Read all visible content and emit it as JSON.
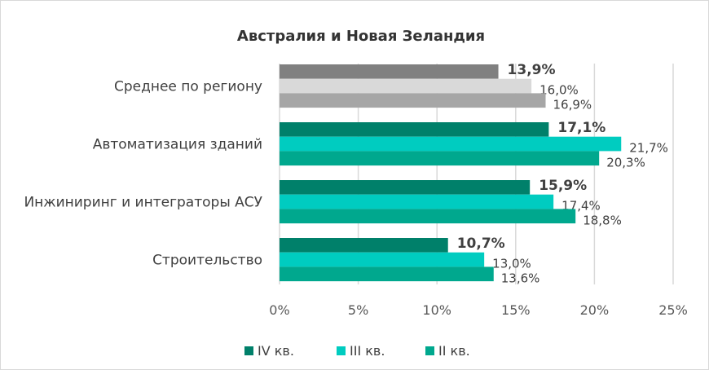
{
  "chart_data": {
    "type": "bar",
    "orientation": "horizontal",
    "title": "Австралия и Новая Зеландия",
    "categories": [
      "Среднее по региону",
      "Автоматизация зданий",
      "Инжиниринг и интеграторы АСУ",
      "Строительство"
    ],
    "series": [
      {
        "name": "IV кв.",
        "values": [
          13.9,
          17.1,
          15.9,
          10.7
        ],
        "labels": [
          "13,9%",
          "17,1%",
          "15,9%",
          "10,7%"
        ],
        "color": "#00806a",
        "avg_color": "#808080"
      },
      {
        "name": "III кв.",
        "values": [
          16.0,
          21.7,
          17.4,
          13.0
        ],
        "labels": [
          "16,0%",
          "21,7%",
          "17,4%",
          "13,0%"
        ],
        "color": "#00ccc0",
        "avg_color": "#d9d9d9"
      },
      {
        "name": "II кв.",
        "values": [
          16.9,
          20.3,
          18.8,
          13.6
        ],
        "labels": [
          "16,9%",
          "20,3%",
          "18,8%",
          "13,6%"
        ],
        "color": "#00a88e",
        "avg_color": "#a6a6a6"
      }
    ],
    "xlim": [
      0,
      25
    ],
    "xticks": [
      0,
      5,
      10,
      15,
      20,
      25
    ],
    "xtick_labels": [
      "0%",
      "5%",
      "10%",
      "15%",
      "20%",
      "25%"
    ],
    "grid": true,
    "legend": "bottom"
  }
}
